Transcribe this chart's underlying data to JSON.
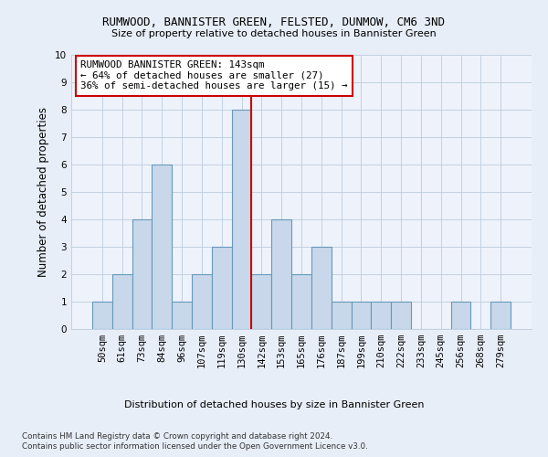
{
  "title": "RUMWOOD, BANNISTER GREEN, FELSTED, DUNMOW, CM6 3ND",
  "subtitle": "Size of property relative to detached houses in Bannister Green",
  "xlabel": "Distribution of detached houses by size in Bannister Green",
  "ylabel": "Number of detached properties",
  "categories": [
    "50sqm",
    "61sqm",
    "73sqm",
    "84sqm",
    "96sqm",
    "107sqm",
    "119sqm",
    "130sqm",
    "142sqm",
    "153sqm",
    "165sqm",
    "176sqm",
    "187sqm",
    "199sqm",
    "210sqm",
    "222sqm",
    "233sqm",
    "245sqm",
    "256sqm",
    "268sqm",
    "279sqm"
  ],
  "values": [
    1,
    2,
    4,
    6,
    1,
    2,
    3,
    8,
    2,
    4,
    2,
    3,
    1,
    1,
    1,
    1,
    0,
    0,
    1,
    0,
    1
  ],
  "bar_color": "#c8d8ea",
  "bar_edge_color": "#6699bb",
  "vline_position": 8.0,
  "vline_color": "#cc0000",
  "annotation_text": "RUMWOOD BANNISTER GREEN: 143sqm\n← 64% of detached houses are smaller (27)\n36% of semi-detached houses are larger (15) →",
  "annotation_box_color": "#ffffff",
  "annotation_box_edge": "#cc0000",
  "ylim": [
    0,
    10
  ],
  "yticks": [
    0,
    1,
    2,
    3,
    4,
    5,
    6,
    7,
    8,
    9,
    10
  ],
  "footer1": "Contains HM Land Registry data © Crown copyright and database right 2024.",
  "footer2": "Contains public sector information licensed under the Open Government Licence v3.0.",
  "bg_color": "#e8eef8",
  "plot_bg_color": "#eef2fa"
}
